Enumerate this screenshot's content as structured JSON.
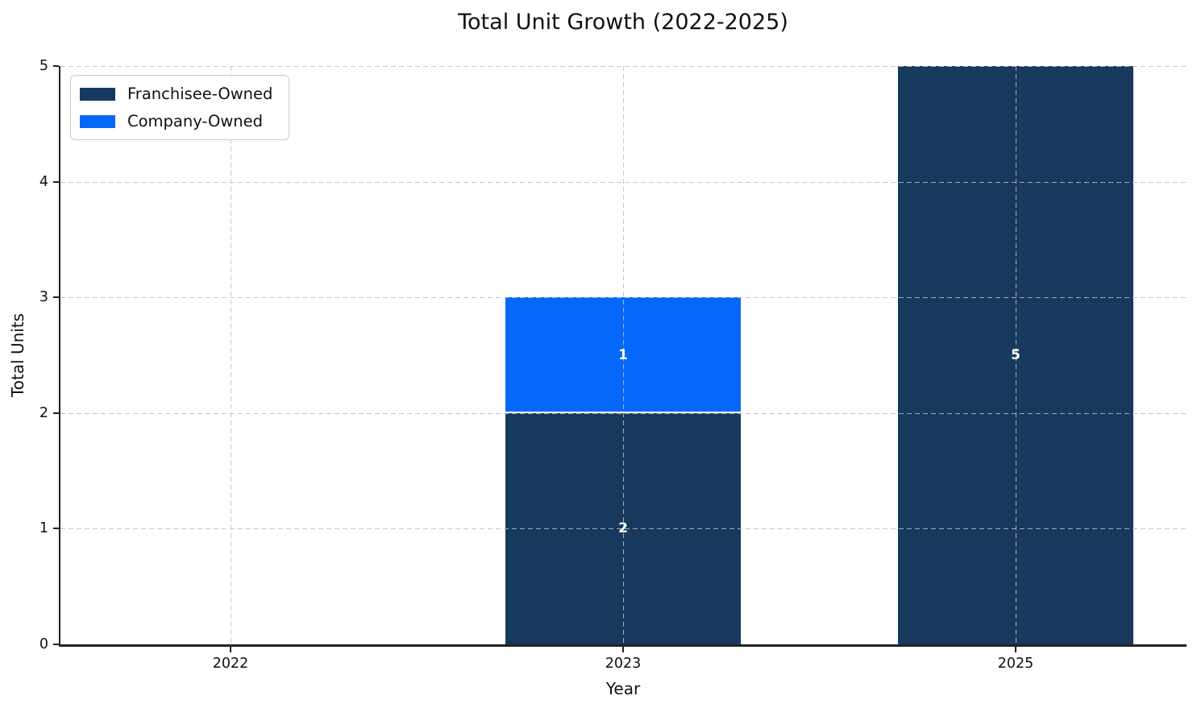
{
  "chart_data": {
    "type": "bar",
    "stacked": true,
    "title": "Total Unit Growth (2022-2025)",
    "xlabel": "Year",
    "ylabel": "Total Units",
    "categories": [
      "2022",
      "2023",
      "2025"
    ],
    "series": [
      {
        "name": "Franchisee-Owned",
        "color": "#17395E",
        "values": [
          0,
          2,
          5
        ]
      },
      {
        "name": "Company-Owned",
        "color": "#0568FA",
        "values": [
          0,
          1,
          0
        ]
      }
    ],
    "bar_value_labels_visible": [
      "2",
      "1",
      "5"
    ],
    "bar_value_label_color": "#ffffff",
    "ylim": [
      0,
      5
    ],
    "yticks": [
      "0",
      "1",
      "2",
      "3",
      "4",
      "5"
    ],
    "grid": {
      "style": "dashed",
      "axes": "both",
      "color": "#c2c2c3",
      "above_bars": true
    },
    "legend": {
      "position": "upper-left",
      "entries": [
        "Franchisee-Owned",
        "Company-Owned"
      ]
    },
    "spine_color": "#222222"
  }
}
